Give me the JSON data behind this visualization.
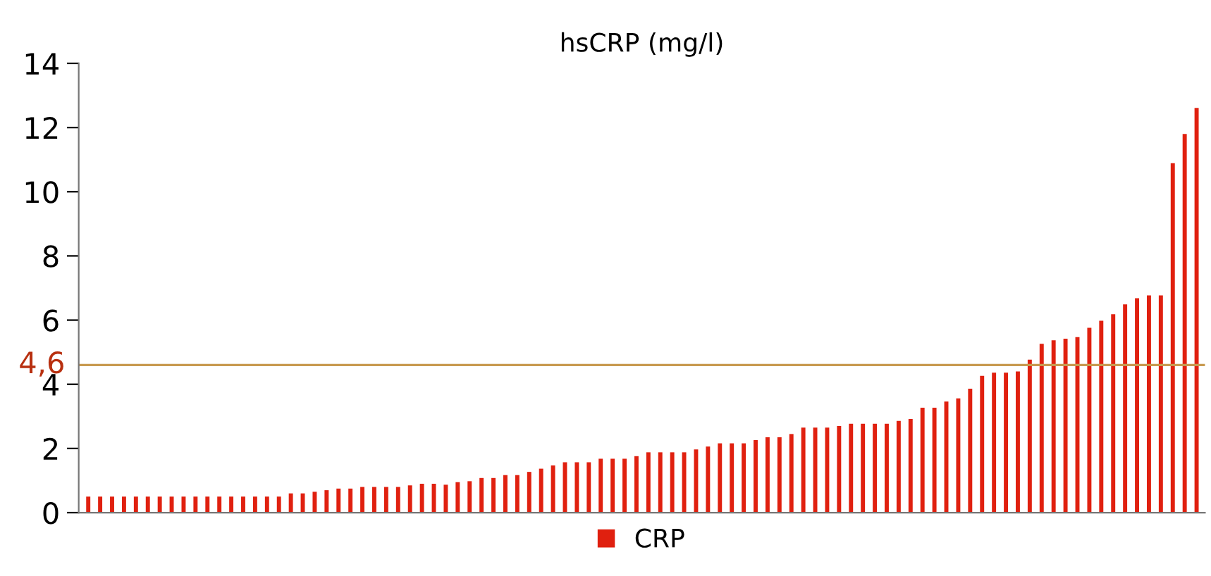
{
  "chart_data": {
    "type": "bar",
    "title": "hsCRP (mg/l)",
    "categories": [
      null,
      null,
      null,
      null,
      null,
      null,
      null,
      null,
      null,
      null,
      null,
      null,
      null,
      null,
      null,
      null,
      null,
      null,
      null,
      null,
      null,
      null,
      null,
      null,
      null,
      null,
      null,
      null,
      null,
      null,
      null,
      null,
      null,
      null,
      null,
      null,
      null,
      null,
      null,
      null,
      null,
      null,
      null,
      null,
      null,
      null,
      null,
      null,
      null,
      null,
      null,
      null,
      null,
      null,
      null,
      null,
      null,
      null,
      null,
      null,
      null,
      null,
      null,
      null,
      null,
      null,
      null,
      null,
      null,
      null,
      null,
      null,
      null,
      null,
      null,
      null,
      null,
      null,
      null,
      null,
      null,
      null,
      null,
      null,
      null,
      null,
      null,
      null,
      null,
      null,
      null,
      null,
      null,
      null
    ],
    "series": [
      {
        "name": "CRP",
        "color": "#e0200f",
        "values": [
          0.5,
          0.5,
          0.5,
          0.5,
          0.5,
          0.5,
          0.5,
          0.5,
          0.5,
          0.5,
          0.5,
          0.5,
          0.5,
          0.5,
          0.5,
          0.5,
          0.5,
          0.6,
          0.6,
          0.65,
          0.7,
          0.75,
          0.75,
          0.8,
          0.8,
          0.8,
          0.8,
          0.85,
          0.9,
          0.9,
          0.87,
          0.95,
          0.98,
          1.08,
          1.08,
          1.17,
          1.17,
          1.27,
          1.37,
          1.47,
          1.57,
          1.57,
          1.57,
          1.68,
          1.68,
          1.68,
          1.76,
          1.88,
          1.88,
          1.88,
          1.88,
          1.97,
          2.06,
          2.16,
          2.16,
          2.16,
          2.26,
          2.35,
          2.35,
          2.45,
          2.65,
          2.65,
          2.65,
          2.7,
          2.77,
          2.77,
          2.77,
          2.77,
          2.86,
          2.92,
          3.27,
          3.27,
          3.46,
          3.56,
          3.86,
          4.26,
          4.36,
          4.36,
          4.4,
          4.77,
          5.26,
          5.37,
          5.42,
          5.47,
          5.76,
          5.98,
          6.18,
          6.49,
          6.68,
          6.77,
          6.77,
          10.89,
          11.8,
          12.61
        ]
      }
    ],
    "ylim": [
      0,
      14
    ],
    "yticks": [
      0,
      2,
      4,
      6,
      8,
      10,
      12,
      14
    ],
    "ref_lines": [
      {
        "axis": "y",
        "value": 4.6,
        "label": "4,6",
        "color": "#c89a50"
      }
    ],
    "legend": "bottom",
    "grid": false
  }
}
